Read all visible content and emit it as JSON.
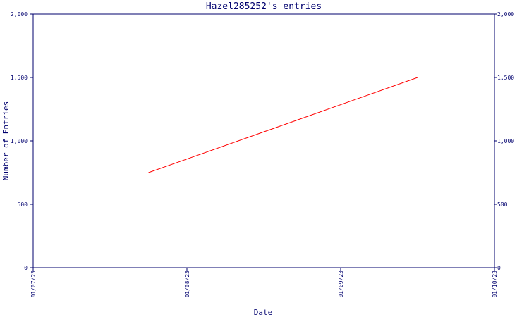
{
  "chart_data": {
    "type": "line",
    "title": "Hazel285252's entries",
    "xlabel": "Date",
    "ylabel": "Number of Entries",
    "ylim": [
      0,
      2000
    ],
    "y_ticks": [
      0,
      500,
      1000,
      1500,
      2000
    ],
    "y_tick_labels": [
      "0",
      "500",
      "1,000",
      "1,500",
      "2,000"
    ],
    "xlim": [
      "2023-01-07",
      "2023-01-10"
    ],
    "x_ticks": [
      "2023-01-07",
      "2023-01-08",
      "2023-01-09",
      "2023-01-10"
    ],
    "x_tick_labels": [
      "01/07/23",
      "01/08/23",
      "01/09/23",
      "01/10/23"
    ],
    "grid": false,
    "series": [
      {
        "color": "#ff0000",
        "x": [
          "2023-01-07T18:00",
          "2023-01-09T12:00"
        ],
        "y": [
          750,
          1500
        ]
      }
    ]
  }
}
